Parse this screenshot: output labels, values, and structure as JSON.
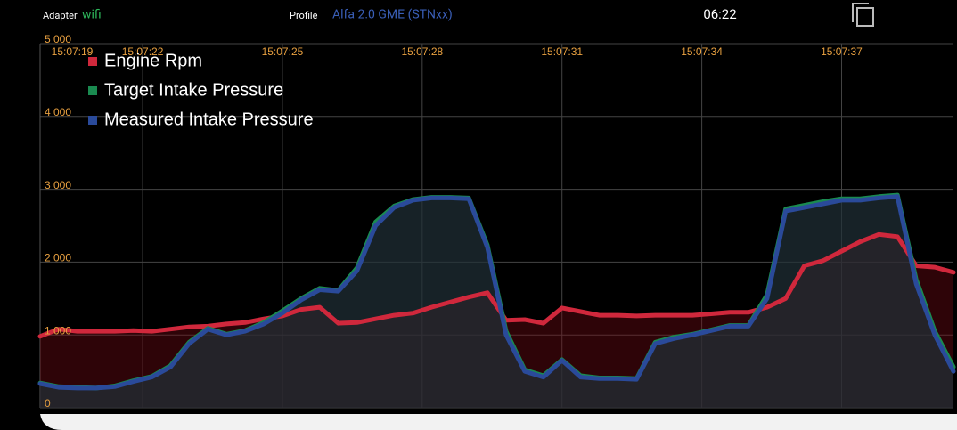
{
  "header": {
    "adapter_label": "Adapter",
    "adapter": "wifi",
    "profile_label": "Profile",
    "profile": "Alfa 2.0 GME (STNxx)",
    "time": "06:22"
  },
  "chart_data": {
    "type": "line",
    "area": true,
    "grid": true,
    "legend": "top-left",
    "xlim": [
      19.8,
      39.4
    ],
    "xticks": [
      {
        "value": 19,
        "label": "15:07:19"
      },
      {
        "value": 22,
        "label": "15:07:22"
      },
      {
        "value": 25,
        "label": "15:07:25"
      },
      {
        "value": 28,
        "label": "15:07:28"
      },
      {
        "value": 31,
        "label": "15:07:31"
      },
      {
        "value": 34,
        "label": "15:07:34"
      },
      {
        "value": 37,
        "label": "15:07:37"
      }
    ],
    "ylim": [
      0,
      5000
    ],
    "yticks": [
      0,
      {
        "value": 1000,
        "label": "1 000"
      },
      {
        "value": 2000,
        "label": "2 000"
      },
      {
        "value": 3000,
        "label": "3 000"
      },
      {
        "value": 4000,
        "label": "4 000"
      },
      {
        "value": 5000,
        "label": "5 000"
      }
    ],
    "x": [
      19.8,
      20.2,
      20.6,
      21.0,
      21.4,
      21.8,
      22.2,
      22.6,
      23.0,
      23.4,
      23.8,
      24.2,
      24.6,
      25.0,
      25.4,
      25.8,
      26.2,
      26.6,
      27.0,
      27.4,
      27.8,
      28.2,
      28.6,
      29.0,
      29.4,
      29.8,
      30.2,
      30.6,
      31.0,
      31.4,
      31.8,
      32.2,
      32.6,
      33.0,
      33.4,
      33.8,
      34.2,
      34.6,
      35.0,
      35.4,
      35.8,
      36.2,
      36.6,
      37.0,
      37.4,
      37.8,
      38.2,
      38.6,
      39.0,
      39.4
    ],
    "series": [
      {
        "name": "Engine Rpm",
        "color": "#d0283c",
        "fill": "rgba(120,10,20,0.38)",
        "values": [
          980,
          1080,
          1050,
          1050,
          1050,
          1060,
          1050,
          1080,
          1110,
          1120,
          1150,
          1170,
          1220,
          1260,
          1350,
          1380,
          1160,
          1170,
          1220,
          1270,
          1300,
          1380,
          1450,
          1520,
          1580,
          1200,
          1210,
          1160,
          1370,
          1320,
          1270,
          1270,
          1260,
          1270,
          1270,
          1270,
          1290,
          1310,
          1310,
          1380,
          1500,
          1950,
          2020,
          2150,
          2280,
          2380,
          2350,
          1950,
          1930,
          1860
        ]
      },
      {
        "name": "Target Intake Pressure",
        "color": "#1a8a50",
        "fill": "rgba(10,60,55,0.35)",
        "values": [
          340,
          290,
          280,
          270,
          300,
          370,
          430,
          580,
          900,
          1090,
          1010,
          1060,
          1170,
          1330,
          1500,
          1640,
          1610,
          1920,
          2550,
          2770,
          2860,
          2890,
          2890,
          2880,
          2230,
          1050,
          520,
          440,
          660,
          440,
          410,
          410,
          400,
          900,
          970,
          1010,
          1070,
          1130,
          1130,
          1550,
          2730,
          2780,
          2830,
          2870,
          2870,
          2900,
          2920,
          1760,
          1050,
          560
        ]
      },
      {
        "name": "Measured Intake Pressure",
        "color": "#2a4a9a",
        "fill": "rgba(40,46,56,0.55)",
        "values": [
          330,
          280,
          270,
          270,
          290,
          360,
          420,
          560,
          880,
          1080,
          1000,
          1050,
          1150,
          1300,
          1480,
          1620,
          1600,
          1880,
          2500,
          2750,
          2850,
          2880,
          2880,
          2870,
          2200,
          1000,
          500,
          420,
          650,
          420,
          400,
          400,
          390,
          880,
          950,
          1000,
          1060,
          1120,
          1120,
          1500,
          2700,
          2750,
          2800,
          2850,
          2850,
          2880,
          2900,
          1700,
          1000,
          500
        ]
      }
    ]
  }
}
